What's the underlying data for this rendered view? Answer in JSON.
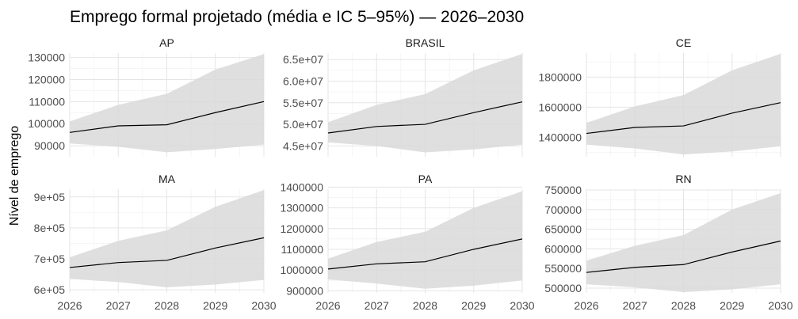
{
  "chart_data": {
    "type": "line",
    "title": "Emprego formal projetado (média e IC 5–95%) — 2026–2030",
    "xlabel": "",
    "ylabel": "Nível de emprego",
    "x": [
      2026,
      2027,
      2028,
      2029,
      2030
    ],
    "x_tick_labels": [
      "2026",
      "2027",
      "2028",
      "2029",
      "2030"
    ],
    "xlim": [
      2026,
      2030
    ],
    "grid": true,
    "facets": [
      {
        "name": "AP",
        "ylim": [
          85000,
          132000
        ],
        "y_ticks": [
          90000,
          100000,
          110000,
          120000,
          130000
        ],
        "y_tick_labels": [
          "90000",
          "100000",
          "110000",
          "120000",
          "130000"
        ],
        "mean": [
          96000,
          99000,
          99500,
          105000,
          110000
        ],
        "lower": [
          91000,
          89500,
          87000,
          88500,
          90500
        ],
        "upper": [
          101000,
          108500,
          113500,
          124500,
          131500
        ]
      },
      {
        "name": "BRASIL",
        "ylim": [
          42500000,
          66500000
        ],
        "y_ticks": [
          45000000,
          50000000,
          55000000,
          60000000,
          65000000
        ],
        "y_tick_labels": [
          "4.5e+07",
          "5.0e+07",
          "5.5e+07",
          "6.0e+07",
          "6.5e+07"
        ],
        "mean": [
          48000000,
          49500000,
          50000000,
          52700000,
          55200000
        ],
        "lower": [
          45800000,
          45000000,
          43500000,
          44200000,
          45300000
        ],
        "upper": [
          50500000,
          54500000,
          57000000,
          62500000,
          66300000
        ]
      },
      {
        "name": "CE",
        "ylim": [
          1270000,
          1960000
        ],
        "y_ticks": [
          1400000,
          1600000,
          1800000
        ],
        "y_tick_labels": [
          "1400000",
          "1600000",
          "1800000"
        ],
        "mean": [
          1425000,
          1465000,
          1475000,
          1560000,
          1630000
        ],
        "lower": [
          1350000,
          1325000,
          1285000,
          1305000,
          1340000
        ],
        "upper": [
          1495000,
          1605000,
          1680000,
          1845000,
          1955000
        ]
      },
      {
        "name": "MA",
        "ylim": [
          590000,
          925000
        ],
        "y_ticks": [
          600000,
          700000,
          800000,
          900000
        ],
        "y_tick_labels": [
          "6e+05",
          "7e+05",
          "8e+05",
          "9e+05"
        ],
        "mean": [
          672000,
          688000,
          695000,
          735000,
          768000
        ],
        "lower": [
          635000,
          625000,
          608000,
          617000,
          632000
        ],
        "upper": [
          705000,
          758000,
          792000,
          868000,
          922000
        ]
      },
      {
        "name": "PA",
        "ylim": [
          890000,
          1390000
        ],
        "y_ticks": [
          900000,
          1000000,
          1100000,
          1200000,
          1300000,
          1400000
        ],
        "y_tick_labels": [
          "900000",
          "1000000",
          "1100000",
          "1200000",
          "1300000",
          "1400000"
        ],
        "mean": [
          1005000,
          1030000,
          1040000,
          1100000,
          1150000
        ],
        "lower": [
          955000,
          935000,
          910000,
          925000,
          950000
        ],
        "upper": [
          1055000,
          1135000,
          1185000,
          1300000,
          1380000
        ]
      },
      {
        "name": "RN",
        "ylim": [
          488000,
          752000
        ],
        "y_ticks": [
          500000,
          550000,
          600000,
          650000,
          700000,
          750000
        ],
        "y_tick_labels": [
          "500000",
          "550000",
          "600000",
          "650000",
          "700000",
          "750000"
        ],
        "mean": [
          540000,
          553000,
          560000,
          592000,
          620000
        ],
        "lower": [
          510000,
          502000,
          490000,
          497000,
          510000
        ],
        "upper": [
          570000,
          608000,
          635000,
          700000,
          742000
        ]
      }
    ]
  }
}
